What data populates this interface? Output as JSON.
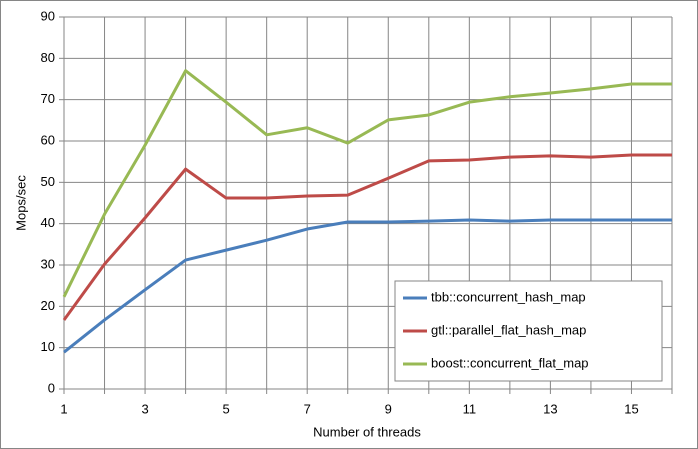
{
  "chart_data": {
    "type": "line",
    "x_label": "Number of threads",
    "y_label": "Mops/sec",
    "x": [
      1,
      2,
      3,
      4,
      5,
      6,
      7,
      8,
      9,
      10,
      11,
      12,
      13,
      14,
      15,
      16
    ],
    "series": [
      {
        "name": "tbb::concurrent_hash_map",
        "color": "#4a7ebb",
        "values": [
          8.9,
          16.7,
          24,
          31.2,
          33.6,
          36,
          38.7,
          40.4,
          40.4,
          40.6,
          40.9,
          40.6,
          40.9,
          40.9,
          40.9,
          40.9
        ]
      },
      {
        "name": "gtl::parallel_flat_hash_map",
        "color": "#be4b48",
        "values": [
          16.7,
          30.2,
          41.4,
          53.2,
          46.2,
          46.2,
          46.7,
          46.9,
          51,
          55.2,
          55.4,
          56.1,
          56.4,
          56.1,
          56.6,
          56.6
        ]
      },
      {
        "name": "boost::concurrent_flat_map",
        "color": "#98b954",
        "values": [
          22.3,
          42.3,
          59,
          77,
          69.4,
          61.5,
          63.2,
          59.5,
          65.1,
          66.3,
          69.4,
          70.7,
          71.6,
          72.6,
          73.8,
          73.8
        ]
      }
    ],
    "xlim": [
      1,
      16
    ],
    "xticks": [
      1,
      3,
      5,
      7,
      9,
      11,
      13,
      15
    ],
    "xminorticks": [
      2,
      4,
      6,
      8,
      10,
      12,
      14,
      16
    ],
    "ylim": [
      0,
      90
    ],
    "yticks": [
      0,
      10,
      20,
      30,
      40,
      50,
      60,
      70,
      80,
      90
    ],
    "grid": true,
    "legend": "lower right"
  }
}
